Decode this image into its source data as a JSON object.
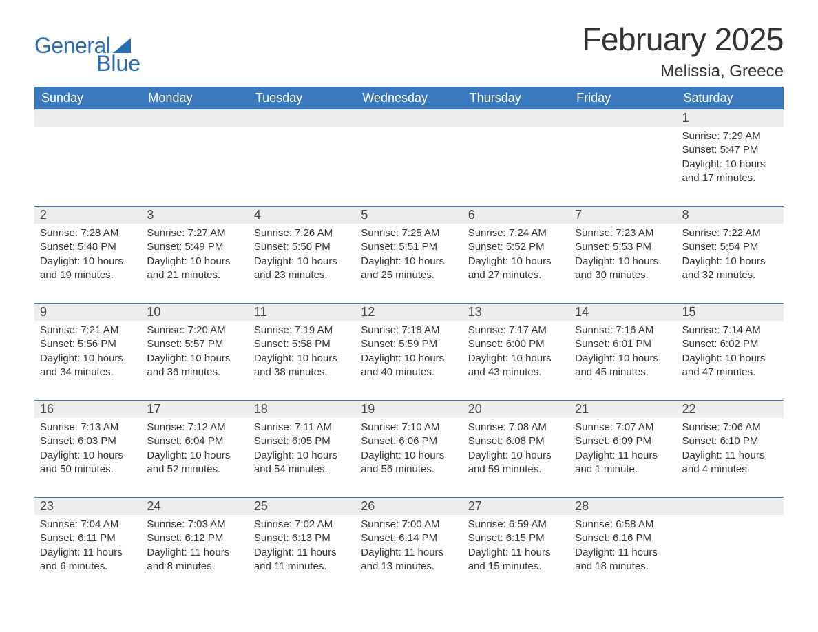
{
  "logo": {
    "word1": "General",
    "word2": "Blue"
  },
  "title": "February 2025",
  "location": "Melissia, Greece",
  "colors": {
    "header_bg": "#3a79bd",
    "header_text": "#ffffff",
    "daynum_bg": "#ededed",
    "body_text": "#333333",
    "logo_color": "#2a6db3",
    "page_bg": "#ffffff",
    "rule": "#3a79bd"
  },
  "typography": {
    "title_fontsize": 46,
    "location_fontsize": 24,
    "header_fontsize": 18,
    "daynum_fontsize": 18,
    "detail_fontsize": 15,
    "logo_fontsize": 32
  },
  "day_headers": [
    "Sunday",
    "Monday",
    "Tuesday",
    "Wednesday",
    "Thursday",
    "Friday",
    "Saturday"
  ],
  "weeks": [
    [
      null,
      null,
      null,
      null,
      null,
      null,
      {
        "n": "1",
        "sunrise": "Sunrise: 7:29 AM",
        "sunset": "Sunset: 5:47 PM",
        "day1": "Daylight: 10 hours",
        "day2": "and 17 minutes."
      }
    ],
    [
      {
        "n": "2",
        "sunrise": "Sunrise: 7:28 AM",
        "sunset": "Sunset: 5:48 PM",
        "day1": "Daylight: 10 hours",
        "day2": "and 19 minutes."
      },
      {
        "n": "3",
        "sunrise": "Sunrise: 7:27 AM",
        "sunset": "Sunset: 5:49 PM",
        "day1": "Daylight: 10 hours",
        "day2": "and 21 minutes."
      },
      {
        "n": "4",
        "sunrise": "Sunrise: 7:26 AM",
        "sunset": "Sunset: 5:50 PM",
        "day1": "Daylight: 10 hours",
        "day2": "and 23 minutes."
      },
      {
        "n": "5",
        "sunrise": "Sunrise: 7:25 AM",
        "sunset": "Sunset: 5:51 PM",
        "day1": "Daylight: 10 hours",
        "day2": "and 25 minutes."
      },
      {
        "n": "6",
        "sunrise": "Sunrise: 7:24 AM",
        "sunset": "Sunset: 5:52 PM",
        "day1": "Daylight: 10 hours",
        "day2": "and 27 minutes."
      },
      {
        "n": "7",
        "sunrise": "Sunrise: 7:23 AM",
        "sunset": "Sunset: 5:53 PM",
        "day1": "Daylight: 10 hours",
        "day2": "and 30 minutes."
      },
      {
        "n": "8",
        "sunrise": "Sunrise: 7:22 AM",
        "sunset": "Sunset: 5:54 PM",
        "day1": "Daylight: 10 hours",
        "day2": "and 32 minutes."
      }
    ],
    [
      {
        "n": "9",
        "sunrise": "Sunrise: 7:21 AM",
        "sunset": "Sunset: 5:56 PM",
        "day1": "Daylight: 10 hours",
        "day2": "and 34 minutes."
      },
      {
        "n": "10",
        "sunrise": "Sunrise: 7:20 AM",
        "sunset": "Sunset: 5:57 PM",
        "day1": "Daylight: 10 hours",
        "day2": "and 36 minutes."
      },
      {
        "n": "11",
        "sunrise": "Sunrise: 7:19 AM",
        "sunset": "Sunset: 5:58 PM",
        "day1": "Daylight: 10 hours",
        "day2": "and 38 minutes."
      },
      {
        "n": "12",
        "sunrise": "Sunrise: 7:18 AM",
        "sunset": "Sunset: 5:59 PM",
        "day1": "Daylight: 10 hours",
        "day2": "and 40 minutes."
      },
      {
        "n": "13",
        "sunrise": "Sunrise: 7:17 AM",
        "sunset": "Sunset: 6:00 PM",
        "day1": "Daylight: 10 hours",
        "day2": "and 43 minutes."
      },
      {
        "n": "14",
        "sunrise": "Sunrise: 7:16 AM",
        "sunset": "Sunset: 6:01 PM",
        "day1": "Daylight: 10 hours",
        "day2": "and 45 minutes."
      },
      {
        "n": "15",
        "sunrise": "Sunrise: 7:14 AM",
        "sunset": "Sunset: 6:02 PM",
        "day1": "Daylight: 10 hours",
        "day2": "and 47 minutes."
      }
    ],
    [
      {
        "n": "16",
        "sunrise": "Sunrise: 7:13 AM",
        "sunset": "Sunset: 6:03 PM",
        "day1": "Daylight: 10 hours",
        "day2": "and 50 minutes."
      },
      {
        "n": "17",
        "sunrise": "Sunrise: 7:12 AM",
        "sunset": "Sunset: 6:04 PM",
        "day1": "Daylight: 10 hours",
        "day2": "and 52 minutes."
      },
      {
        "n": "18",
        "sunrise": "Sunrise: 7:11 AM",
        "sunset": "Sunset: 6:05 PM",
        "day1": "Daylight: 10 hours",
        "day2": "and 54 minutes."
      },
      {
        "n": "19",
        "sunrise": "Sunrise: 7:10 AM",
        "sunset": "Sunset: 6:06 PM",
        "day1": "Daylight: 10 hours",
        "day2": "and 56 minutes."
      },
      {
        "n": "20",
        "sunrise": "Sunrise: 7:08 AM",
        "sunset": "Sunset: 6:08 PM",
        "day1": "Daylight: 10 hours",
        "day2": "and 59 minutes."
      },
      {
        "n": "21",
        "sunrise": "Sunrise: 7:07 AM",
        "sunset": "Sunset: 6:09 PM",
        "day1": "Daylight: 11 hours",
        "day2": "and 1 minute."
      },
      {
        "n": "22",
        "sunrise": "Sunrise: 7:06 AM",
        "sunset": "Sunset: 6:10 PM",
        "day1": "Daylight: 11 hours",
        "day2": "and 4 minutes."
      }
    ],
    [
      {
        "n": "23",
        "sunrise": "Sunrise: 7:04 AM",
        "sunset": "Sunset: 6:11 PM",
        "day1": "Daylight: 11 hours",
        "day2": "and 6 minutes."
      },
      {
        "n": "24",
        "sunrise": "Sunrise: 7:03 AM",
        "sunset": "Sunset: 6:12 PM",
        "day1": "Daylight: 11 hours",
        "day2": "and 8 minutes."
      },
      {
        "n": "25",
        "sunrise": "Sunrise: 7:02 AM",
        "sunset": "Sunset: 6:13 PM",
        "day1": "Daylight: 11 hours",
        "day2": "and 11 minutes."
      },
      {
        "n": "26",
        "sunrise": "Sunrise: 7:00 AM",
        "sunset": "Sunset: 6:14 PM",
        "day1": "Daylight: 11 hours",
        "day2": "and 13 minutes."
      },
      {
        "n": "27",
        "sunrise": "Sunrise: 6:59 AM",
        "sunset": "Sunset: 6:15 PM",
        "day1": "Daylight: 11 hours",
        "day2": "and 15 minutes."
      },
      {
        "n": "28",
        "sunrise": "Sunrise: 6:58 AM",
        "sunset": "Sunset: 6:16 PM",
        "day1": "Daylight: 11 hours",
        "day2": "and 18 minutes."
      },
      null
    ]
  ]
}
